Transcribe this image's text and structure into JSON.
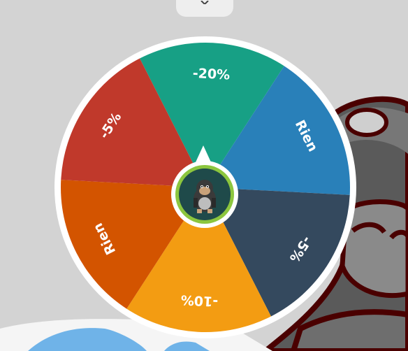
{
  "top_button": {
    "icon": "chevron-down-icon"
  },
  "wheel": {
    "colors": {
      "rim": "#ffffff",
      "green": "#17a085",
      "blue": "#2980b9",
      "navy": "#34495e",
      "yellow": "#f39c12",
      "orange": "#d35400",
      "red": "#c0392b",
      "hub_ring": "#8cc63e",
      "hub_bg": "#1f4a4a"
    },
    "segments": [
      {
        "label": "-20%",
        "color": "#17a085"
      },
      {
        "label": "Rien",
        "color": "#2980b9"
      },
      {
        "label": "-5%",
        "color": "#34495e"
      },
      {
        "label": "-10%",
        "color": "#f39c12"
      },
      {
        "label": "Rien",
        "color": "#d35400"
      },
      {
        "label": "-5%",
        "color": "#c0392b"
      }
    ],
    "hub_icon": "gorilla-mascot-icon",
    "pointer_icon": "pointer-triangle-icon"
  },
  "background": {
    "mascot_icon": "gorilla-mascot-illustration",
    "accent_shape": "blue-card-shape"
  }
}
